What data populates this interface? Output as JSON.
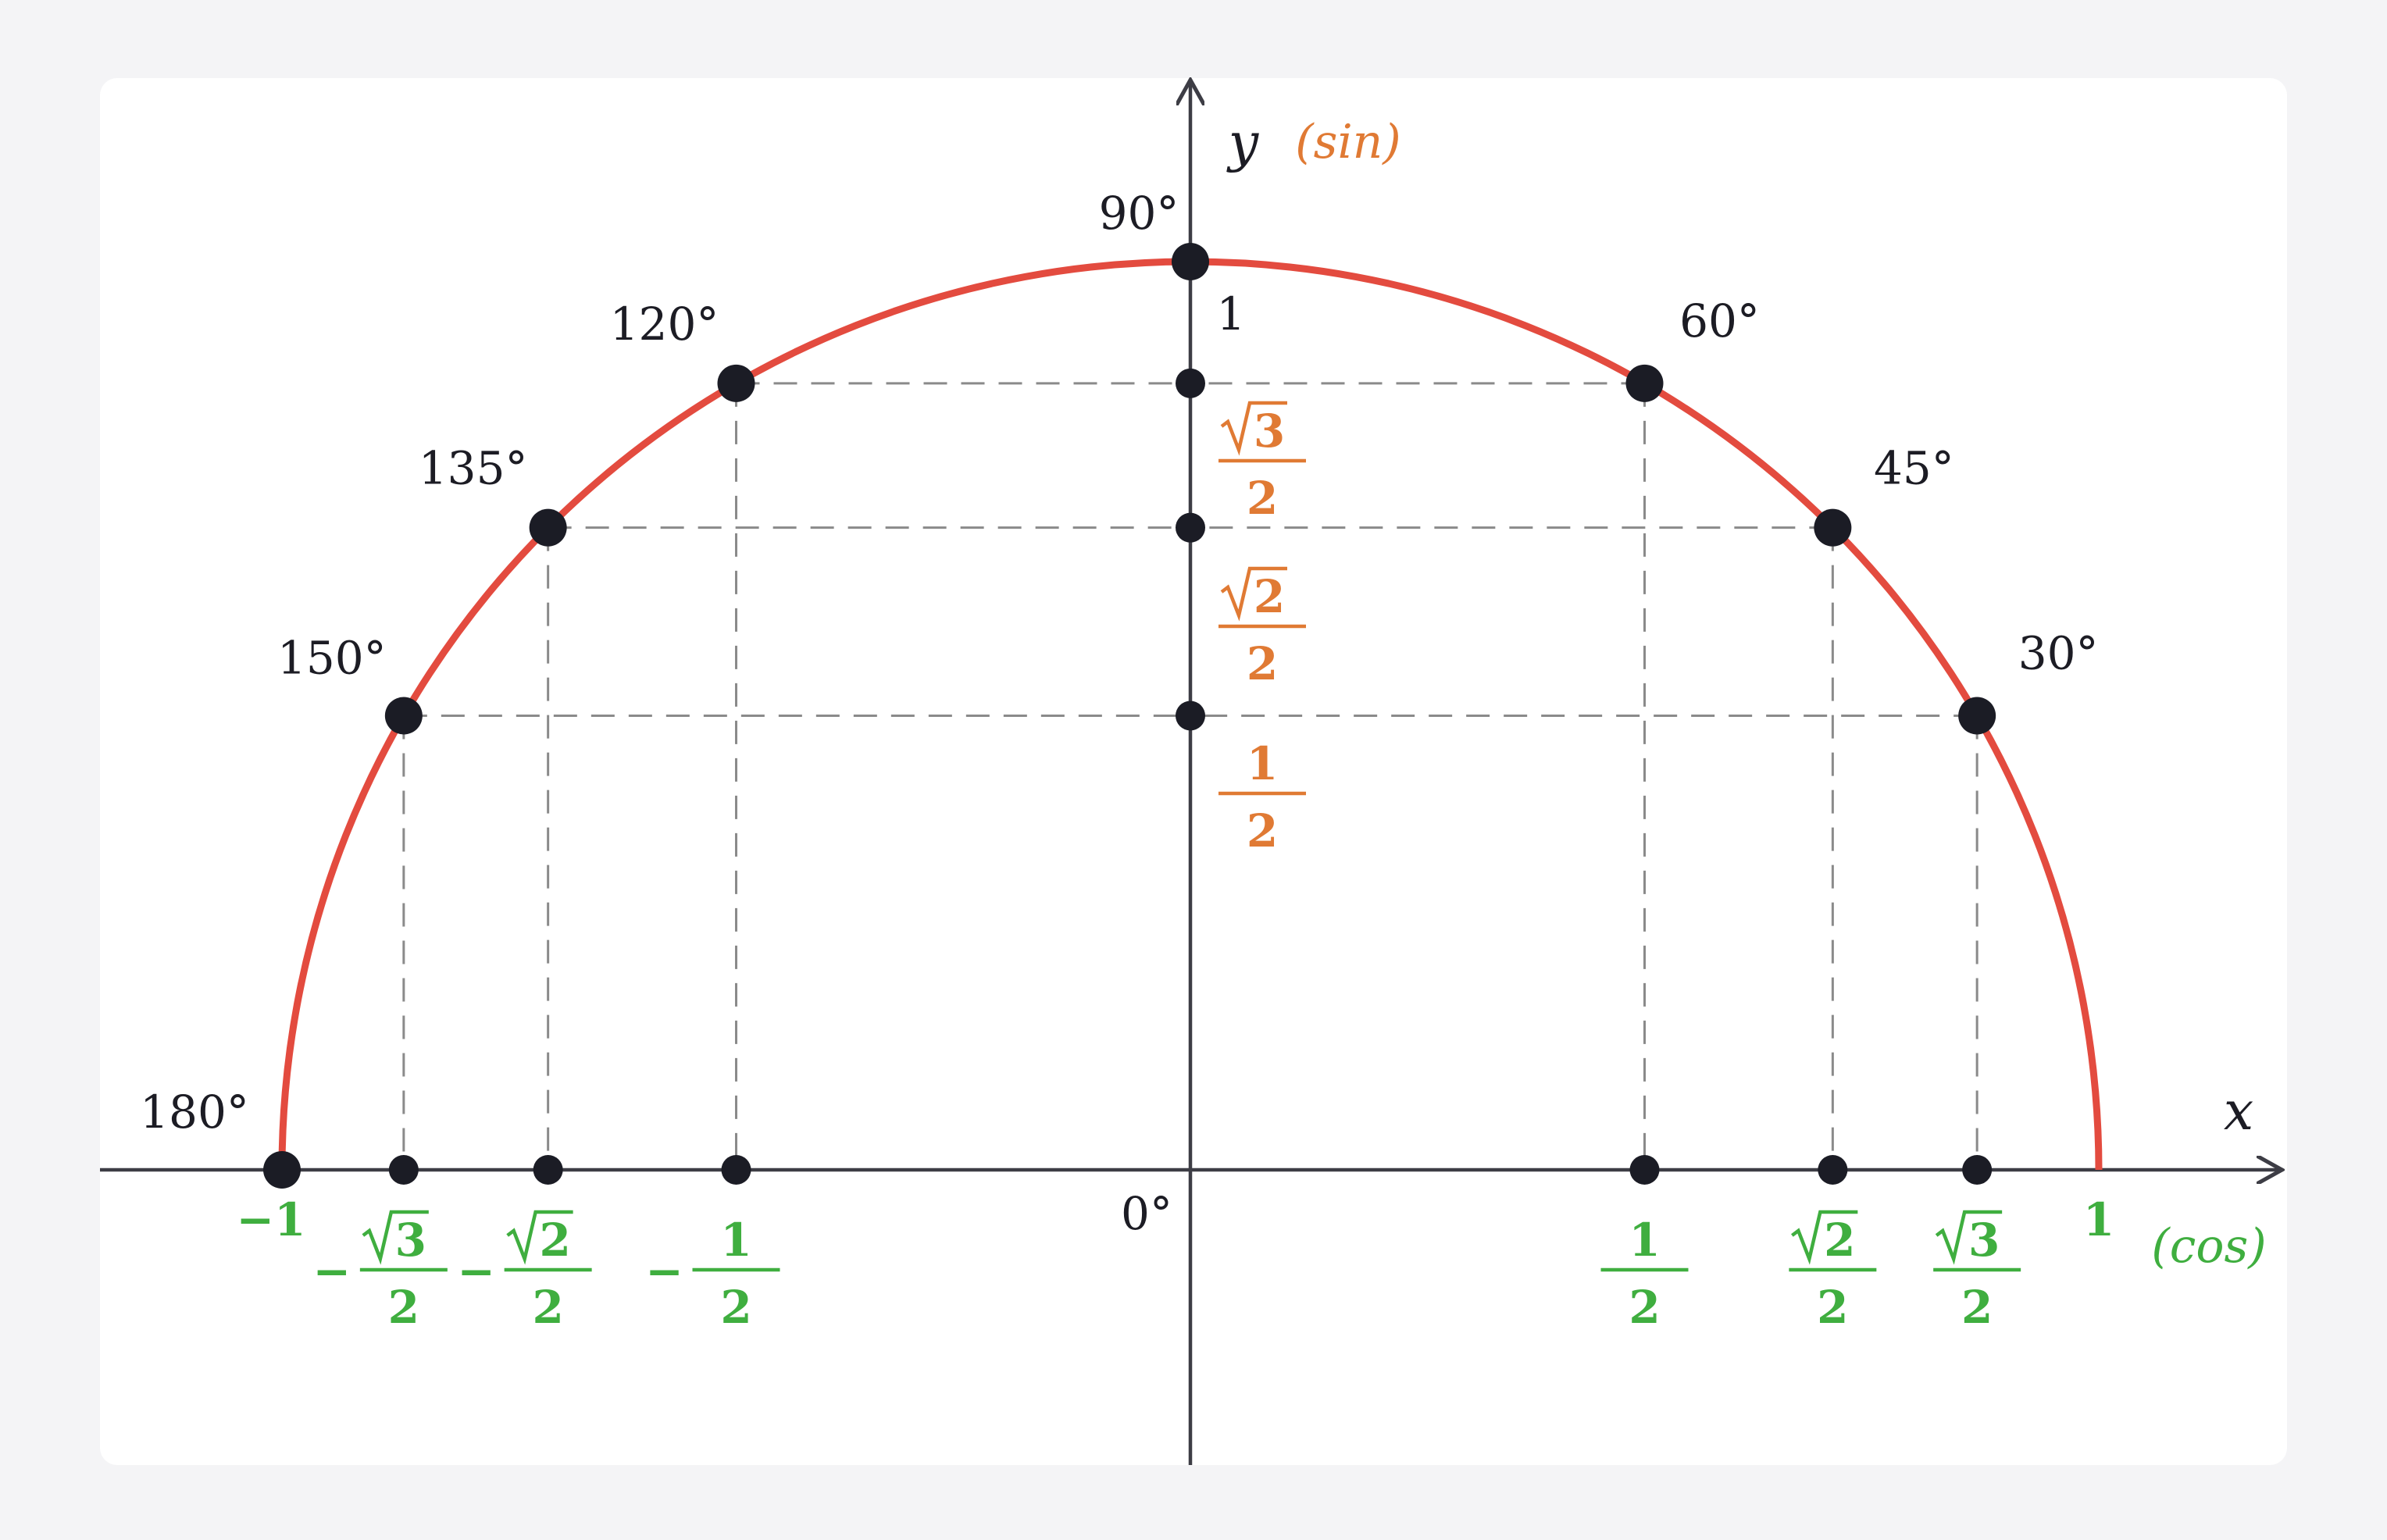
{
  "colors": {
    "circle": "#e34b3f",
    "sin": "#e07a34",
    "cos": "#3fae3f",
    "axis": "#3d3d45",
    "dot": "#1b1c25",
    "guide": "#8a8a8a",
    "text": "#1c1c24"
  },
  "axes": {
    "x_label": "x",
    "y_label": "y",
    "x_fn": "(cos)",
    "y_fn": "(sin)",
    "origin_label": "0°",
    "y_one_label": "1"
  },
  "chart_data": {
    "type": "scatter",
    "title": "",
    "xlim": [
      -1,
      1
    ],
    "ylim": [
      0,
      1
    ],
    "curve": "upper unit semicircle",
    "points": [
      {
        "angle": 0,
        "angle_label": "",
        "x": 1,
        "y": 0
      },
      {
        "angle": 30,
        "angle_label": "30°",
        "x": 0.866,
        "y": 0.5
      },
      {
        "angle": 45,
        "angle_label": "45°",
        "x": 0.7071,
        "y": 0.7071
      },
      {
        "angle": 60,
        "angle_label": "60°",
        "x": 0.5,
        "y": 0.866
      },
      {
        "angle": 90,
        "angle_label": "90°",
        "x": 0,
        "y": 1
      },
      {
        "angle": 120,
        "angle_label": "120°",
        "x": -0.5,
        "y": 0.866
      },
      {
        "angle": 135,
        "angle_label": "135°",
        "x": -0.7071,
        "y": 0.7071
      },
      {
        "angle": 150,
        "angle_label": "150°",
        "x": -0.866,
        "y": 0.5
      },
      {
        "angle": 180,
        "angle_label": "180°",
        "x": -1,
        "y": 0
      }
    ],
    "cos_ticks": [
      {
        "value": -1,
        "label": "−1"
      },
      {
        "value": -0.866,
        "sign": "−",
        "root": "3",
        "den": "2"
      },
      {
        "value": -0.7071,
        "sign": "−",
        "root": "2",
        "den": "2"
      },
      {
        "value": -0.5,
        "sign": "−",
        "num": "1",
        "den": "2"
      },
      {
        "value": 0.5,
        "num": "1",
        "den": "2"
      },
      {
        "value": 0.7071,
        "root": "2",
        "den": "2"
      },
      {
        "value": 0.866,
        "root": "3",
        "den": "2"
      },
      {
        "value": 1,
        "label": "1"
      }
    ],
    "sin_ticks": [
      {
        "value": 0.866,
        "root": "3",
        "den": "2"
      },
      {
        "value": 0.7071,
        "root": "2",
        "den": "2"
      },
      {
        "value": 0.5,
        "num": "1",
        "den": "2"
      }
    ]
  }
}
